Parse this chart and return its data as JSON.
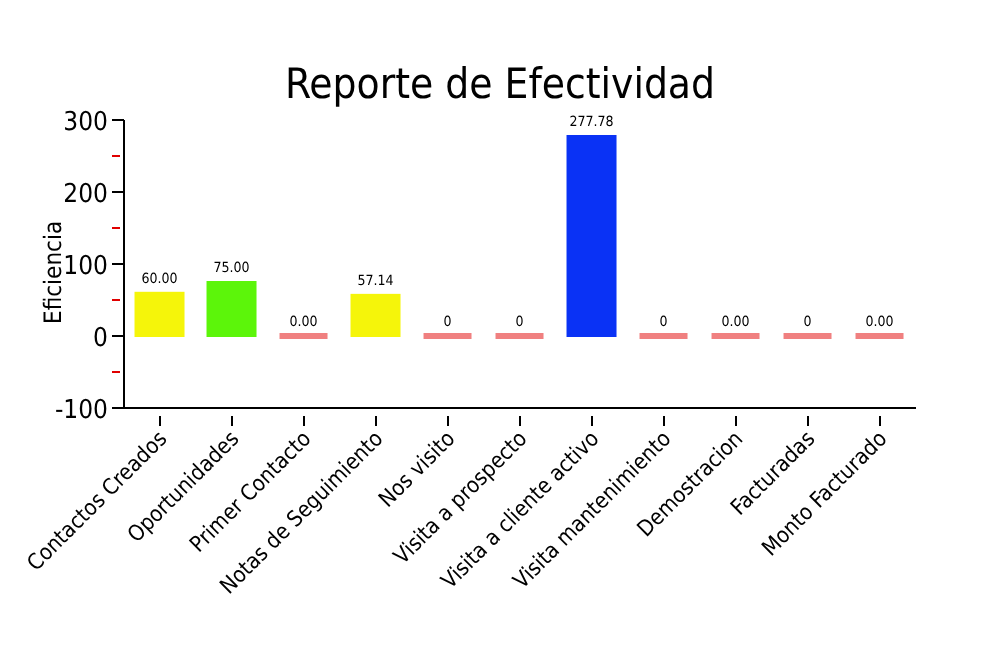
{
  "chart_data": {
    "type": "bar",
    "title": "Reporte de Efectividad",
    "ylabel": "Eficiencia",
    "categories": [
      "Contactos Creados",
      "Oportunidades",
      "Primer Contacto",
      "Notas de Seguimiento",
      "Nos visito",
      "Visita a prospecto",
      "Visita a cliente activo",
      "Visita mantenimiento",
      "Demostracion",
      "Facturadas",
      "Monto Facturado"
    ],
    "values": [
      60,
      75,
      0,
      57.14,
      0,
      0,
      277.78,
      0,
      0,
      0,
      0
    ],
    "colors": [
      "#f5f50a",
      "#5cf50a",
      "#f08080",
      "#f5f50a",
      "#f08080",
      "#f08080",
      "#0a32f5",
      "#f08080",
      "#f08080",
      "#f08080",
      "#f08080"
    ],
    "value_labels": [
      "60.00",
      "75.00",
      "0.00",
      "57.14",
      "0",
      "0",
      "277.78",
      "0",
      "0.00",
      "0",
      "0.00"
    ],
    "ylim": [
      -100,
      300
    ],
    "yticks": [
      -100,
      {
        "value": -50,
        "label": null
      },
      0,
      {
        "value": 50,
        "label": null
      },
      100,
      {
        "value": 150,
        "label": null
      },
      200,
      {
        "value": 250,
        "label": null
      },
      300
    ],
    "grid": false
  }
}
